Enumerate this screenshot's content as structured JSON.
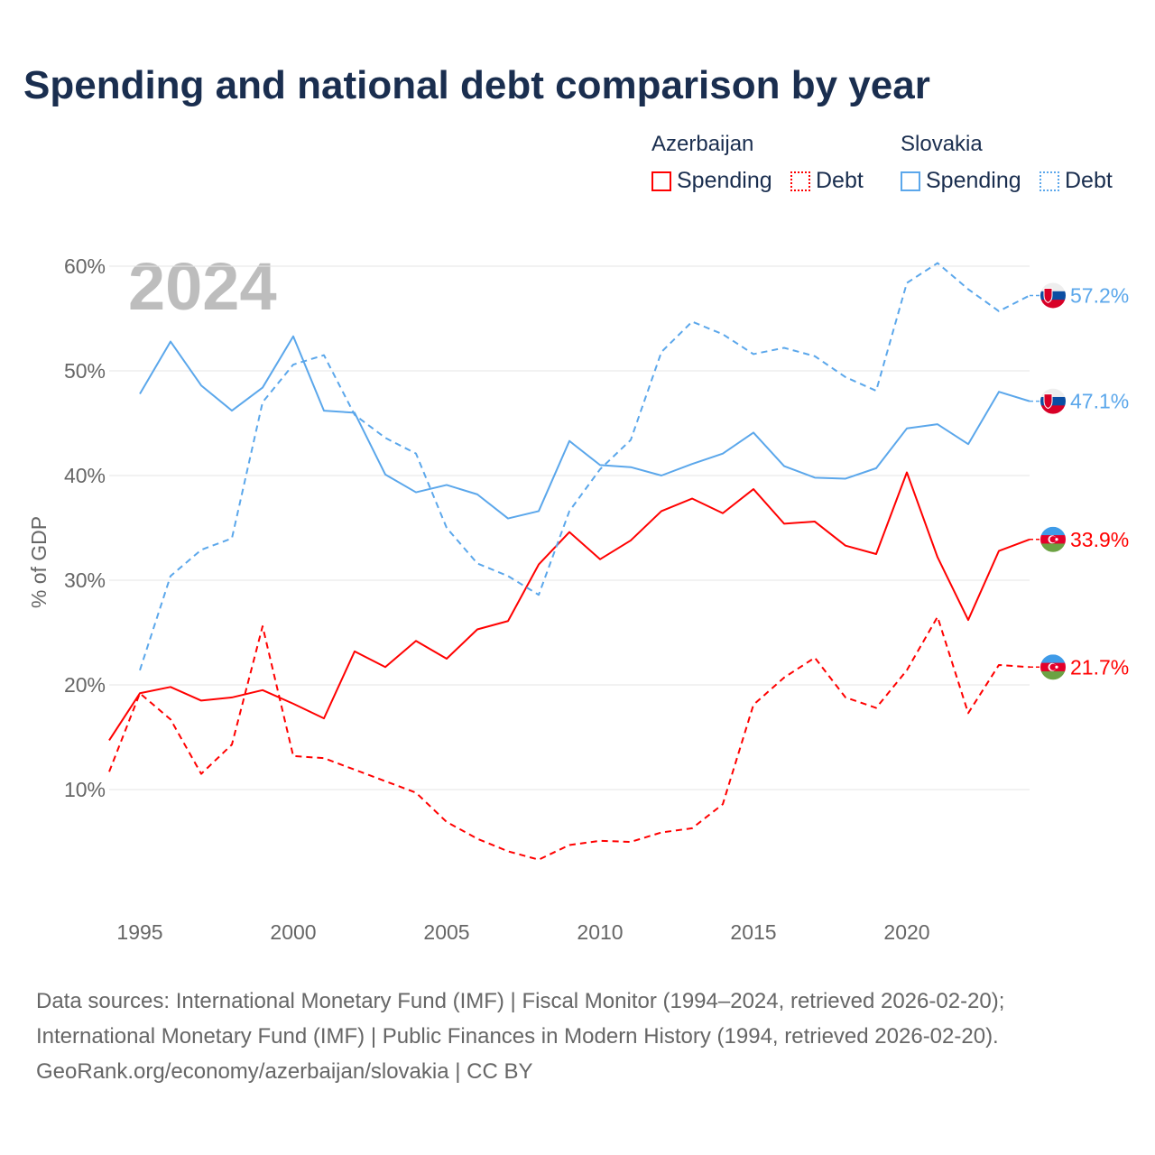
{
  "title": "Spending and national debt comparison by year",
  "legend": {
    "groups": [
      {
        "country": "Azerbaijan",
        "items": [
          {
            "label": "Spending",
            "style": "solid"
          },
          {
            "label": "Debt",
            "style": "dotted"
          }
        ],
        "color": "#ff0000"
      },
      {
        "country": "Slovakia",
        "items": [
          {
            "label": "Spending",
            "style": "solid"
          },
          {
            "label": "Debt",
            "style": "dotted"
          }
        ],
        "color": "#5ba7eb"
      }
    ]
  },
  "footer": {
    "line1": "Data sources: International Monetary Fund (IMF) | Fiscal Monitor (1994–2024, retrieved 2026-02-20);",
    "line2": "International Monetary Fund (IMF) | Public Finances in Modern History (1994, retrieved 2026-02-20).",
    "line3": "GeoRank.org/economy/azerbaijan/slovakia | CC BY"
  },
  "chart_data": {
    "type": "line",
    "title": "Spending and national debt comparison by year",
    "year_label": "2024",
    "ylabel": "% of GDP",
    "xlabel": "",
    "xlim": [
      1994,
      2024
    ],
    "ylim": [
      0,
      62
    ],
    "yticks": [
      10,
      20,
      30,
      40,
      50,
      60
    ],
    "ytick_labels": [
      "10%",
      "20%",
      "30%",
      "40%",
      "50%",
      "60%"
    ],
    "xticks": [
      1995,
      2000,
      2005,
      2010,
      2015,
      2020
    ],
    "xtick_labels": [
      "1995",
      "2000",
      "2005",
      "2010",
      "2015",
      "2020"
    ],
    "grid": true,
    "legend_position": "top-right",
    "series": [
      {
        "name": "Azerbaijan Spending",
        "country": "Azerbaijan",
        "flag": "az",
        "color": "#ff0000",
        "dash": false,
        "end_label": "33.9%",
        "x": [
          1994,
          1995,
          1996,
          1997,
          1998,
          1999,
          2000,
          2001,
          2002,
          2003,
          2004,
          2005,
          2006,
          2007,
          2008,
          2009,
          2010,
          2011,
          2012,
          2013,
          2014,
          2015,
          2016,
          2017,
          2018,
          2019,
          2020,
          2021,
          2022,
          2023,
          2024
        ],
        "values": [
          14.7,
          19.2,
          19.8,
          18.5,
          18.8,
          19.5,
          18.2,
          16.8,
          23.2,
          21.7,
          24.2,
          22.5,
          25.3,
          26.1,
          31.5,
          34.6,
          32.0,
          33.8,
          36.6,
          37.8,
          36.4,
          38.7,
          35.4,
          35.6,
          33.3,
          32.5,
          40.3,
          32.2,
          26.2,
          32.8,
          33.9
        ]
      },
      {
        "name": "Azerbaijan Debt",
        "country": "Azerbaijan",
        "flag": "az",
        "color": "#ff0000",
        "dash": true,
        "end_label": "21.7%",
        "x": [
          1994,
          1995,
          1996,
          1997,
          1998,
          1999,
          2000,
          2001,
          2002,
          2003,
          2004,
          2005,
          2006,
          2007,
          2008,
          2009,
          2010,
          2011,
          2012,
          2013,
          2014,
          2015,
          2016,
          2017,
          2018,
          2019,
          2020,
          2021,
          2022,
          2023,
          2024
        ],
        "values": [
          11.7,
          19.2,
          16.7,
          11.5,
          14.3,
          25.6,
          13.2,
          13.0,
          11.9,
          10.8,
          9.7,
          6.9,
          5.3,
          4.1,
          3.3,
          4.7,
          5.1,
          5.0,
          5.9,
          6.3,
          8.6,
          18.1,
          20.7,
          22.6,
          18.8,
          17.8,
          21.4,
          26.5,
          17.3,
          21.9,
          21.7
        ]
      },
      {
        "name": "Slovakia Spending",
        "country": "Slovakia",
        "flag": "sk",
        "color": "#5ba7eb",
        "dash": false,
        "end_label": "47.1%",
        "x": [
          1995,
          1996,
          1997,
          1998,
          1999,
          2000,
          2001,
          2002,
          2003,
          2004,
          2005,
          2006,
          2007,
          2008,
          2009,
          2010,
          2011,
          2012,
          2013,
          2014,
          2015,
          2016,
          2017,
          2018,
          2019,
          2020,
          2021,
          2022,
          2023,
          2024
        ],
        "values": [
          47.8,
          52.8,
          48.6,
          46.2,
          48.4,
          53.3,
          46.2,
          46.0,
          40.1,
          38.4,
          39.1,
          38.2,
          35.9,
          36.6,
          43.3,
          41.0,
          40.8,
          40.0,
          41.1,
          42.1,
          44.1,
          40.9,
          39.8,
          39.7,
          40.7,
          44.5,
          44.9,
          43.0,
          48.0,
          47.1
        ]
      },
      {
        "name": "Slovakia Debt",
        "country": "Slovakia",
        "flag": "sk",
        "color": "#5ba7eb",
        "dash": true,
        "end_label": "57.2%",
        "x": [
          1995,
          1996,
          1997,
          1998,
          1999,
          2000,
          2001,
          2002,
          2003,
          2004,
          2005,
          2006,
          2007,
          2008,
          2009,
          2010,
          2011,
          2012,
          2013,
          2014,
          2015,
          2016,
          2017,
          2018,
          2019,
          2020,
          2021,
          2022,
          2023,
          2024
        ],
        "values": [
          21.4,
          30.4,
          32.9,
          34.0,
          47.0,
          50.6,
          51.5,
          45.8,
          43.6,
          42.1,
          35.0,
          31.6,
          30.4,
          28.6,
          36.6,
          40.6,
          43.4,
          51.8,
          54.7,
          53.5,
          51.6,
          52.2,
          51.4,
          49.4,
          48.1,
          58.4,
          60.3,
          57.8,
          55.7,
          57.2
        ]
      }
    ]
  }
}
